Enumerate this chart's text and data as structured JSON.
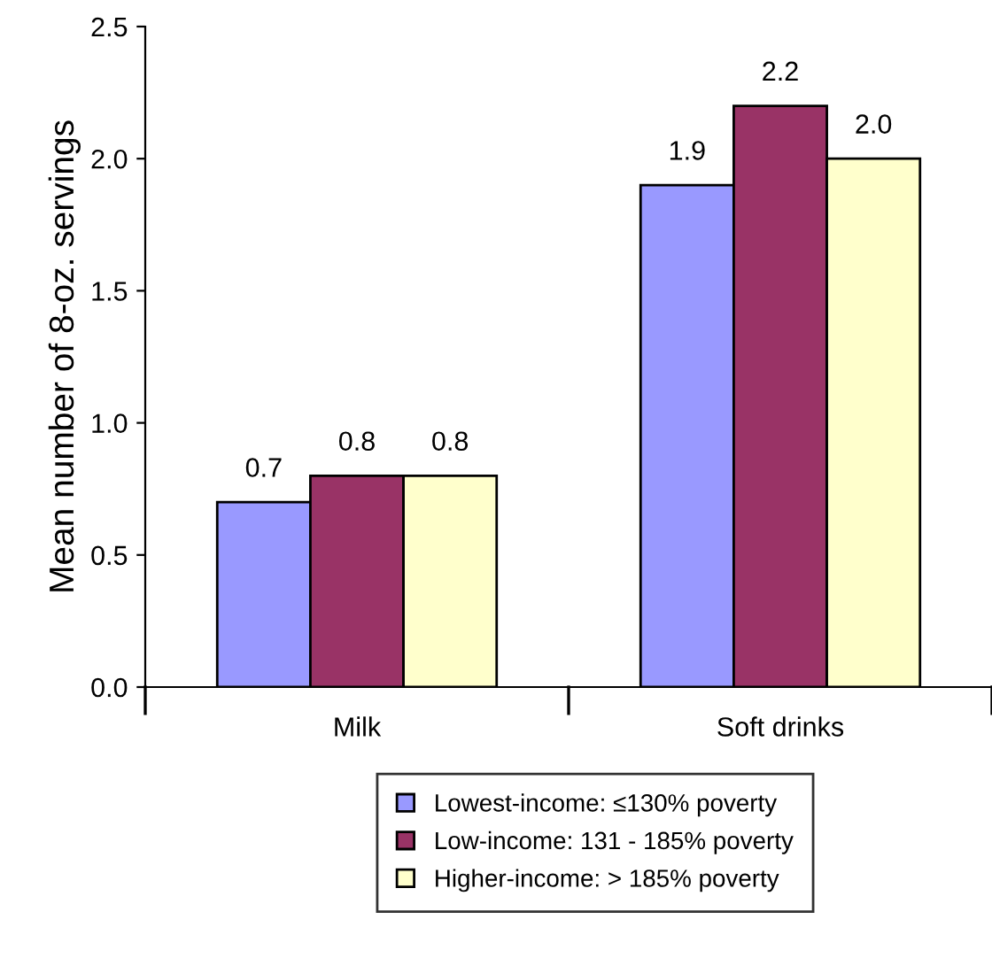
{
  "chart_data": {
    "type": "bar",
    "ylabel": "Mean number of 8-oz. servings",
    "categories": [
      "Milk",
      "Soft drinks"
    ],
    "series": [
      {
        "name": "Lowest-income: ≤130% poverty",
        "color": "#9999ff",
        "values": [
          0.7,
          1.9
        ],
        "value_labels": [
          "0.7",
          "1.9"
        ]
      },
      {
        "name": "Low-income: 131 - 185% poverty",
        "color": "#993366",
        "values": [
          0.8,
          2.2
        ],
        "value_labels": [
          "0.8",
          "2.2"
        ]
      },
      {
        "name": "Higher-income: > 185% poverty",
        "color": "#ffffcc",
        "values": [
          0.8,
          2.0
        ],
        "value_labels": [
          "0.8",
          "2.0"
        ]
      }
    ],
    "ylim": [
      0,
      2.5
    ],
    "yticks": [
      "0.0",
      0.5,
      "1.0",
      1.5,
      "2.0",
      2.5
    ],
    "grid": false,
    "legend": "bottom"
  }
}
